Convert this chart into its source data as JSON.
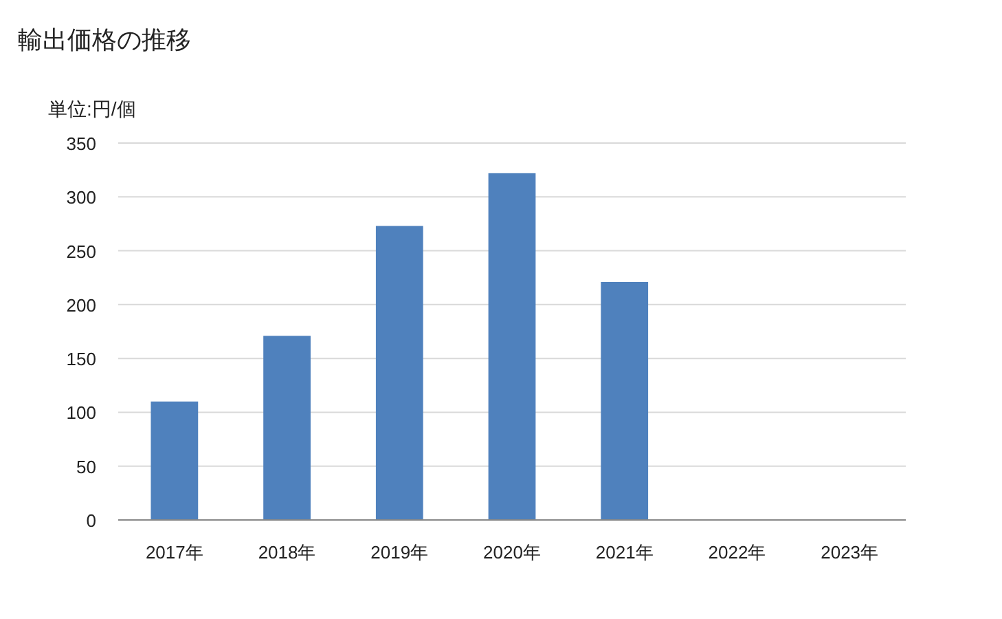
{
  "chart_data": {
    "type": "bar",
    "title": "輸出価格の推移",
    "ylabel": "単位:円/個",
    "categories": [
      "2017年",
      "2018年",
      "2019年",
      "2020年",
      "2021年",
      "2022年",
      "2023年"
    ],
    "values": [
      110,
      171,
      273,
      322,
      221,
      null,
      null
    ],
    "color": "#4f81bd",
    "ylim": [
      0,
      350
    ],
    "yticks": [
      0,
      50,
      100,
      150,
      200,
      250,
      300,
      350
    ],
    "grid": "y"
  }
}
